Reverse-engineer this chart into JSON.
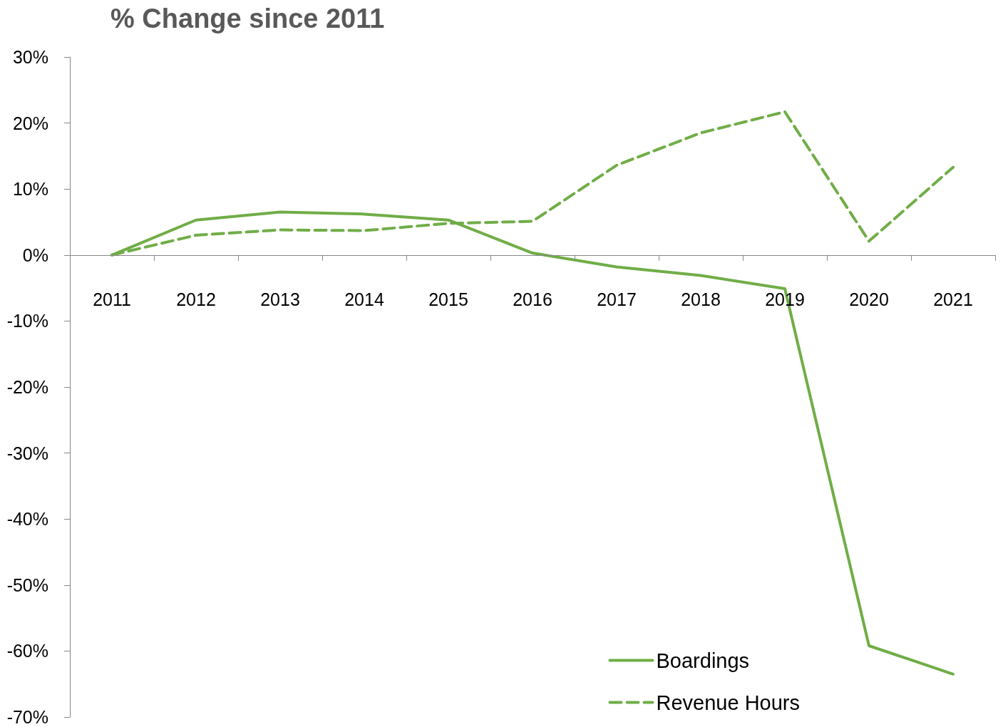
{
  "chart_data": {
    "type": "line",
    "title": "% Change since 2011",
    "categories": [
      "2011",
      "2012",
      "2013",
      "2014",
      "2015",
      "2016",
      "2017",
      "2018",
      "2019",
      "2020",
      "2021"
    ],
    "series": [
      {
        "name": "Boardings",
        "color": "#70ad47",
        "line_style": "solid",
        "values": [
          0,
          5.3,
          6.5,
          6.2,
          5.3,
          0.3,
          -1.8,
          -3.1,
          -5.1,
          -59.2,
          -63.5
        ]
      },
      {
        "name": "Revenue Hours",
        "color": "#70ad47",
        "line_style": "dashed",
        "values": [
          0,
          3.0,
          3.8,
          3.7,
          4.8,
          5.1,
          13.6,
          18.5,
          21.7,
          2.1,
          13.3
        ]
      }
    ],
    "ylim": [
      -70,
      30
    ],
    "yticks": [
      {
        "value": -70,
        "label": "-70%"
      },
      {
        "value": -60,
        "label": "-60%"
      },
      {
        "value": -50,
        "label": "-50%"
      },
      {
        "value": -40,
        "label": "-40%"
      },
      {
        "value": -30,
        "label": "-30%"
      },
      {
        "value": -20,
        "label": "-20%"
      },
      {
        "value": -10,
        "label": "-10%"
      },
      {
        "value": 0,
        "label": "0%"
      },
      {
        "value": 10,
        "label": "10%"
      },
      {
        "value": 20,
        "label": "20%"
      },
      {
        "value": 30,
        "label": "30%"
      }
    ],
    "legend": "bottom right",
    "marker": "none"
  }
}
